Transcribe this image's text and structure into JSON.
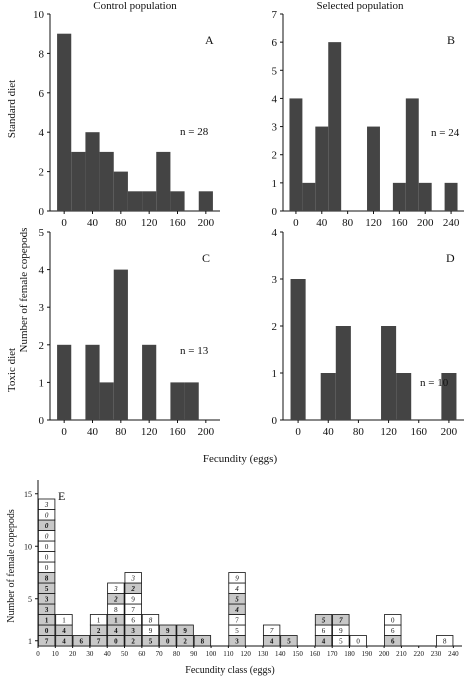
{
  "titles": {
    "control": "Control population",
    "selected": "Selected population"
  },
  "row_labels": {
    "standard": "Standard diet",
    "toxic": "Toxic diet"
  },
  "shared_ylabel": "Number of female copepods",
  "shared_xlabel": "Fecundity (eggs)",
  "colors": {
    "bar": "#444444",
    "axis": "#111111",
    "grey_cell": "#c8c8c8",
    "white_cell": "#ffffff"
  },
  "chart_data": [
    {
      "id": "A",
      "type": "bar",
      "panel_letter": "A",
      "annotation": "n = 28",
      "bin_width": 20,
      "x_start": -10,
      "values": [
        9,
        3,
        4,
        3,
        2,
        1,
        1,
        3,
        1,
        0,
        1
      ],
      "xticks": [
        0,
        40,
        80,
        120,
        160,
        200
      ],
      "yticks": [
        0,
        2,
        4,
        6,
        8,
        10
      ],
      "xlim": [
        -20,
        220
      ],
      "ylim": [
        0,
        10
      ]
    },
    {
      "id": "B",
      "type": "bar",
      "panel_letter": "B",
      "annotation": "n = 24",
      "bin_width": 20,
      "x_start": -10,
      "values": [
        4,
        1,
        3,
        6,
        0,
        0,
        3,
        0,
        1,
        4,
        1,
        0,
        1
      ],
      "xticks": [
        0,
        40,
        80,
        120,
        160,
        200,
        240
      ],
      "yticks": [
        0,
        1,
        2,
        3,
        4,
        5,
        6,
        7
      ],
      "xlim": [
        -20,
        260
      ],
      "ylim": [
        0,
        7
      ]
    },
    {
      "id": "C",
      "type": "bar",
      "panel_letter": "C",
      "annotation": "n = 13",
      "bin_width": 20,
      "x_start": -10,
      "values": [
        2,
        0,
        2,
        1,
        4,
        0,
        2,
        0,
        1,
        1
      ],
      "xticks": [
        0,
        40,
        80,
        120,
        160,
        200
      ],
      "yticks": [
        0,
        1,
        2,
        3,
        4,
        5
      ],
      "xlim": [
        -20,
        220
      ],
      "ylim": [
        0,
        5
      ]
    },
    {
      "id": "D",
      "type": "bar",
      "panel_letter": "D",
      "annotation": "n = 10",
      "bin_width": 20,
      "x_start": -10,
      "values": [
        3,
        0,
        1,
        2,
        0,
        0,
        2,
        1,
        0,
        0,
        1
      ],
      "xticks": [
        0,
        40,
        80,
        120,
        160,
        200
      ],
      "yticks": [
        0,
        1,
        2,
        3,
        4
      ],
      "xlim": [
        -20,
        220
      ],
      "ylim": [
        0,
        4
      ]
    },
    {
      "id": "E",
      "type": "table",
      "panel_letter": "E",
      "xlabel": "Fecundity class (eggs)",
      "ylabel": "Number of female copepods",
      "xticks": [
        0,
        10,
        20,
        30,
        40,
        50,
        60,
        70,
        80,
        90,
        100,
        110,
        120,
        130,
        140,
        150,
        160,
        170,
        180,
        190,
        200,
        210,
        220,
        230,
        240
      ],
      "yticks": [
        1,
        5,
        10,
        15
      ],
      "columns": [
        {
          "x": 0,
          "cells": [
            {
              "t": "7",
              "g": true
            },
            {
              "t": "0",
              "g": true
            },
            {
              "t": "1",
              "g": true
            },
            {
              "t": "3",
              "g": true
            },
            {
              "t": "3",
              "g": true
            },
            {
              "t": "5",
              "g": true
            },
            {
              "t": "8",
              "g": true
            },
            {
              "t": "0"
            },
            {
              "t": "0"
            },
            {
              "t": "0"
            },
            {
              "t": "0",
              "i": true
            },
            {
              "t": "0",
              "g": true,
              "i": true
            },
            {
              "t": "0",
              "i": true
            },
            {
              "t": "3",
              "i": true
            }
          ]
        },
        {
          "x": 10,
          "cells": [
            {
              "t": "4",
              "g": true
            },
            {
              "t": "4",
              "g": true
            },
            {
              "t": "1"
            }
          ]
        },
        {
          "x": 20,
          "cells": [
            {
              "t": "6",
              "g": true
            }
          ]
        },
        {
          "x": 30,
          "cells": [
            {
              "t": "7",
              "g": true
            },
            {
              "t": "2",
              "g": true
            },
            {
              "t": "1"
            }
          ]
        },
        {
          "x": 40,
          "cells": [
            {
              "t": "0",
              "g": true
            },
            {
              "t": "4",
              "g": true
            },
            {
              "t": "1",
              "g": true
            },
            {
              "t": "8"
            },
            {
              "t": "2",
              "g": true,
              "i": true
            },
            {
              "t": "3",
              "i": true
            }
          ]
        },
        {
          "x": 50,
          "cells": [
            {
              "t": "2",
              "g": true
            },
            {
              "t": "3",
              "g": true
            },
            {
              "t": "6"
            },
            {
              "t": "7"
            },
            {
              "t": "9"
            },
            {
              "t": "2",
              "g": true,
              "i": true
            },
            {
              "t": "3",
              "i": true
            }
          ]
        },
        {
          "x": 60,
          "cells": [
            {
              "t": "5",
              "g": true
            },
            {
              "t": "9"
            },
            {
              "t": "8",
              "i": true
            }
          ]
        },
        {
          "x": 70,
          "cells": [
            {
              "t": "0",
              "g": true
            },
            {
              "t": "9",
              "g": true
            }
          ]
        },
        {
          "x": 80,
          "cells": [
            {
              "t": "2",
              "g": true
            },
            {
              "t": "9",
              "g": true
            }
          ]
        },
        {
          "x": 90,
          "cells": [
            {
              "t": "8",
              "g": true
            }
          ]
        },
        {
          "x": 110,
          "cells": [
            {
              "t": "3",
              "g": true
            },
            {
              "t": "5"
            },
            {
              "t": "7"
            },
            {
              "t": "4",
              "g": true,
              "i": true
            },
            {
              "t": "5",
              "g": true,
              "i": true
            },
            {
              "t": "4",
              "i": true
            },
            {
              "t": "9",
              "i": true
            }
          ]
        },
        {
          "x": 130,
          "cells": [
            {
              "t": "4",
              "g": true
            },
            {
              "t": "7",
              "i": true
            }
          ]
        },
        {
          "x": 140,
          "cells": [
            {
              "t": "5",
              "g": true
            }
          ]
        },
        {
          "x": 160,
          "cells": [
            {
              "t": "4",
              "g": true
            },
            {
              "t": "6"
            },
            {
              "t": "5",
              "g": true,
              "i": true
            }
          ]
        },
        {
          "x": 170,
          "cells": [
            {
              "t": "5"
            },
            {
              "t": "9"
            },
            {
              "t": "7",
              "g": true,
              "i": true
            }
          ]
        },
        {
          "x": 180,
          "cells": [
            {
              "t": "0"
            }
          ]
        },
        {
          "x": 200,
          "cells": [
            {
              "t": "6",
              "g": true
            },
            {
              "t": "6"
            },
            {
              "t": "0"
            }
          ]
        },
        {
          "x": 230,
          "cells": [
            {
              "t": "8"
            }
          ]
        }
      ]
    }
  ]
}
